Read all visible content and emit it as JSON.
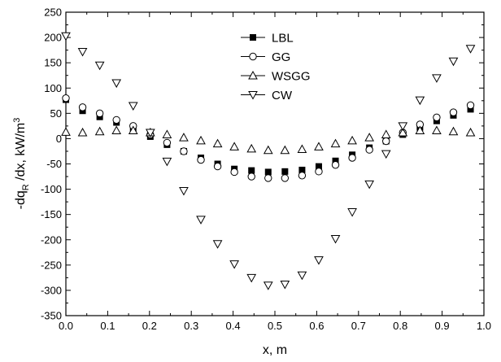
{
  "chart_data": {
    "type": "scatter",
    "xlabel": "x, m",
    "ylabel": {
      "prefix": "-dq",
      "sub": "R",
      "mid": " /dx, kW/m",
      "sup": "3"
    },
    "xlim": [
      0.0,
      1.0
    ],
    "ylim": [
      -350,
      250
    ],
    "xticks": [
      "0.0",
      "0.1",
      "0.2",
      "0.3",
      "0.4",
      "0.5",
      "0.6",
      "0.7",
      "0.8",
      "0.9",
      "1.0"
    ],
    "yticks": [
      "250",
      "200",
      "150",
      "100",
      "50",
      "0",
      "-50",
      "-100",
      "-150",
      "-200",
      "-250",
      "-300",
      "-350"
    ],
    "grid": false,
    "legend_position": "top-center",
    "series": [
      {
        "name": "LBL",
        "marker": "filled-square",
        "x": [
          0.0,
          0.04,
          0.081,
          0.121,
          0.161,
          0.202,
          0.242,
          0.282,
          0.323,
          0.363,
          0.403,
          0.444,
          0.484,
          0.524,
          0.565,
          0.605,
          0.645,
          0.685,
          0.726,
          0.766,
          0.806,
          0.847,
          0.887,
          0.927,
          0.968
        ],
        "y": [
          77,
          55,
          43,
          32,
          20,
          4,
          -12,
          -25,
          -38,
          -50,
          -60,
          -63,
          -66,
          -65,
          -62,
          -55,
          -44,
          -32,
          -18,
          -5,
          8,
          22,
          35,
          46,
          58
        ]
      },
      {
        "name": "GG",
        "marker": "open-circle",
        "x": [
          0.0,
          0.04,
          0.081,
          0.121,
          0.161,
          0.202,
          0.242,
          0.282,
          0.323,
          0.363,
          0.403,
          0.444,
          0.484,
          0.524,
          0.565,
          0.605,
          0.645,
          0.685,
          0.726,
          0.766,
          0.806,
          0.847,
          0.887,
          0.927,
          0.968
        ],
        "y": [
          80,
          62,
          50,
          37,
          25,
          8,
          -8,
          -25,
          -42,
          -55,
          -66,
          -75,
          -78,
          -78,
          -73,
          -65,
          -52,
          -38,
          -22,
          -5,
          12,
          28,
          42,
          52,
          66
        ]
      },
      {
        "name": "WSGG",
        "marker": "open-triangle-up",
        "x": [
          0.0,
          0.04,
          0.081,
          0.121,
          0.161,
          0.202,
          0.242,
          0.282,
          0.323,
          0.363,
          0.403,
          0.444,
          0.484,
          0.524,
          0.565,
          0.605,
          0.645,
          0.685,
          0.726,
          0.766,
          0.806,
          0.847,
          0.887,
          0.927,
          0.968
        ],
        "y": [
          13,
          12,
          14,
          16,
          16,
          12,
          8,
          2,
          -4,
          -10,
          -16,
          -20,
          -23,
          -23,
          -21,
          -16,
          -10,
          -4,
          2,
          8,
          12,
          16,
          16,
          14,
          12
        ]
      },
      {
        "name": "CW",
        "marker": "open-triangle-down",
        "x": [
          0.0,
          0.04,
          0.081,
          0.121,
          0.161,
          0.202,
          0.242,
          0.282,
          0.323,
          0.363,
          0.403,
          0.444,
          0.484,
          0.524,
          0.565,
          0.605,
          0.645,
          0.685,
          0.726,
          0.766,
          0.806,
          0.847,
          0.887,
          0.927,
          0.968
        ],
        "y": [
          203,
          172,
          145,
          110,
          65,
          12,
          -45,
          -103,
          -160,
          -208,
          -248,
          -275,
          -290,
          -288,
          -270,
          -240,
          -198,
          -145,
          -90,
          -30,
          25,
          76,
          120,
          153,
          178
        ]
      }
    ]
  }
}
